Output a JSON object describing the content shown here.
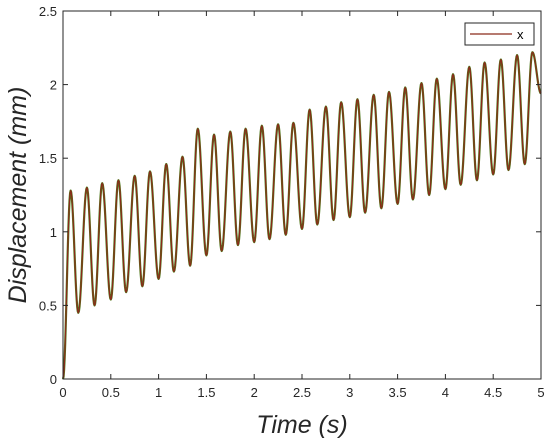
{
  "chart_data": {
    "type": "line",
    "xlabel": "Time (s)",
    "ylabel": "Displacement (mm)",
    "xlim": [
      0,
      5
    ],
    "ylim": [
      0,
      2.5
    ],
    "x_ticks": [
      "0",
      "0.5",
      "1",
      "1.5",
      "2",
      "2.5",
      "3",
      "3.5",
      "4",
      "4.5",
      "5"
    ],
    "y_ticks": [
      "0",
      "0.5",
      "1",
      "1.5",
      "2",
      "2.5"
    ],
    "grid": false,
    "legend_position": "top-right",
    "series": [
      {
        "name": "x",
        "color": "#8b2a1a",
        "edge_color": "#4d7a1a",
        "oscillation_frequency_hz": 6,
        "start_value": 0,
        "peaks": [
          {
            "x": 0.08,
            "y": 1.28
          },
          {
            "x": 0.25,
            "y": 1.3
          },
          {
            "x": 0.41,
            "y": 1.33
          },
          {
            "x": 0.58,
            "y": 1.35
          },
          {
            "x": 0.75,
            "y": 1.38
          },
          {
            "x": 0.91,
            "y": 1.41
          },
          {
            "x": 1.08,
            "y": 1.46
          },
          {
            "x": 1.25,
            "y": 1.51
          },
          {
            "x": 1.41,
            "y": 1.7
          },
          {
            "x": 1.58,
            "y": 1.66
          },
          {
            "x": 1.75,
            "y": 1.68
          },
          {
            "x": 1.91,
            "y": 1.7
          },
          {
            "x": 2.08,
            "y": 1.72
          },
          {
            "x": 2.25,
            "y": 1.73
          },
          {
            "x": 2.41,
            "y": 1.74
          },
          {
            "x": 2.58,
            "y": 1.83
          },
          {
            "x": 2.75,
            "y": 1.85
          },
          {
            "x": 2.91,
            "y": 1.88
          },
          {
            "x": 3.08,
            "y": 1.9
          },
          {
            "x": 3.25,
            "y": 1.93
          },
          {
            "x": 3.41,
            "y": 1.95
          },
          {
            "x": 3.58,
            "y": 1.98
          },
          {
            "x": 3.75,
            "y": 2.01
          },
          {
            "x": 3.91,
            "y": 2.04
          },
          {
            "x": 4.08,
            "y": 2.07
          },
          {
            "x": 4.25,
            "y": 2.12
          },
          {
            "x": 4.41,
            "y": 2.15
          },
          {
            "x": 4.58,
            "y": 2.17
          },
          {
            "x": 4.75,
            "y": 2.2
          },
          {
            "x": 4.91,
            "y": 2.22
          }
        ],
        "troughs": [
          {
            "x": 0.16,
            "y": 0.45
          },
          {
            "x": 0.33,
            "y": 0.5
          },
          {
            "x": 0.5,
            "y": 0.54
          },
          {
            "x": 0.66,
            "y": 0.59
          },
          {
            "x": 0.83,
            "y": 0.63
          },
          {
            "x": 1.0,
            "y": 0.68
          },
          {
            "x": 1.16,
            "y": 0.73
          },
          {
            "x": 1.33,
            "y": 0.77
          },
          {
            "x": 1.5,
            "y": 0.84
          },
          {
            "x": 1.66,
            "y": 0.87
          },
          {
            "x": 1.83,
            "y": 0.91
          },
          {
            "x": 2.0,
            "y": 0.93
          },
          {
            "x": 2.16,
            "y": 0.95
          },
          {
            "x": 2.33,
            "y": 0.98
          },
          {
            "x": 2.5,
            "y": 1.02
          },
          {
            "x": 2.66,
            "y": 1.05
          },
          {
            "x": 2.83,
            "y": 1.08
          },
          {
            "x": 3.0,
            "y": 1.1
          },
          {
            "x": 3.16,
            "y": 1.13
          },
          {
            "x": 3.33,
            "y": 1.16
          },
          {
            "x": 3.5,
            "y": 1.19
          },
          {
            "x": 3.66,
            "y": 1.22
          },
          {
            "x": 3.83,
            "y": 1.25
          },
          {
            "x": 4.0,
            "y": 1.29
          },
          {
            "x": 4.16,
            "y": 1.32
          },
          {
            "x": 4.33,
            "y": 1.35
          },
          {
            "x": 4.5,
            "y": 1.39
          },
          {
            "x": 4.66,
            "y": 1.42
          },
          {
            "x": 4.83,
            "y": 1.46
          },
          {
            "x": 5.0,
            "y": 1.94
          }
        ]
      }
    ]
  }
}
